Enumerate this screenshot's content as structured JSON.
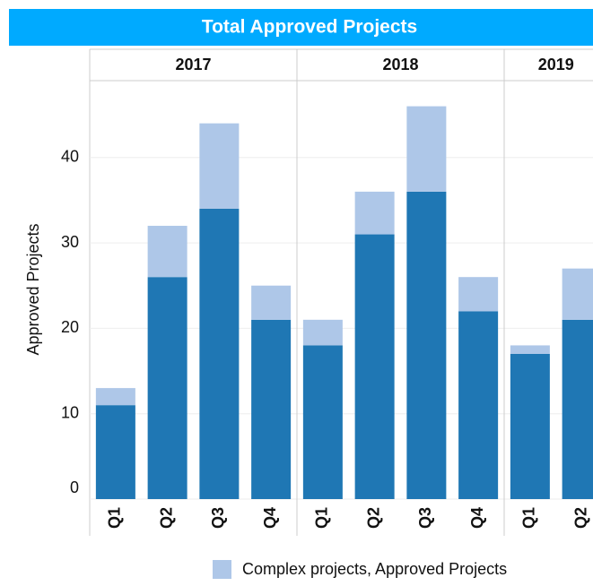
{
  "chart_data": {
    "type": "stacked-bar",
    "title": "Total Approved Projects",
    "y_label": "Approved Projects",
    "groups": [
      {
        "label": "2017",
        "categories": [
          "Q1",
          "Q2",
          "Q3",
          "Q4"
        ]
      },
      {
        "label": "2018",
        "categories": [
          "Q1",
          "Q2",
          "Q3",
          "Q4"
        ]
      },
      {
        "label": "2019",
        "categories": [
          "Q1",
          "Q2"
        ]
      }
    ],
    "series": [
      {
        "color": "#1f77b4",
        "values": [
          11,
          26,
          34,
          21,
          18,
          31,
          36,
          22,
          17,
          21
        ]
      },
      {
        "name": "Complex projects, Approved Projects",
        "color": "#aec7e8",
        "values": [
          2,
          6,
          10,
          4,
          3,
          5,
          10,
          4,
          1,
          6
        ]
      }
    ],
    "ylim": [
      0,
      49
    ],
    "yticks": [
      0,
      10,
      20,
      30,
      40
    ],
    "grid": true
  }
}
